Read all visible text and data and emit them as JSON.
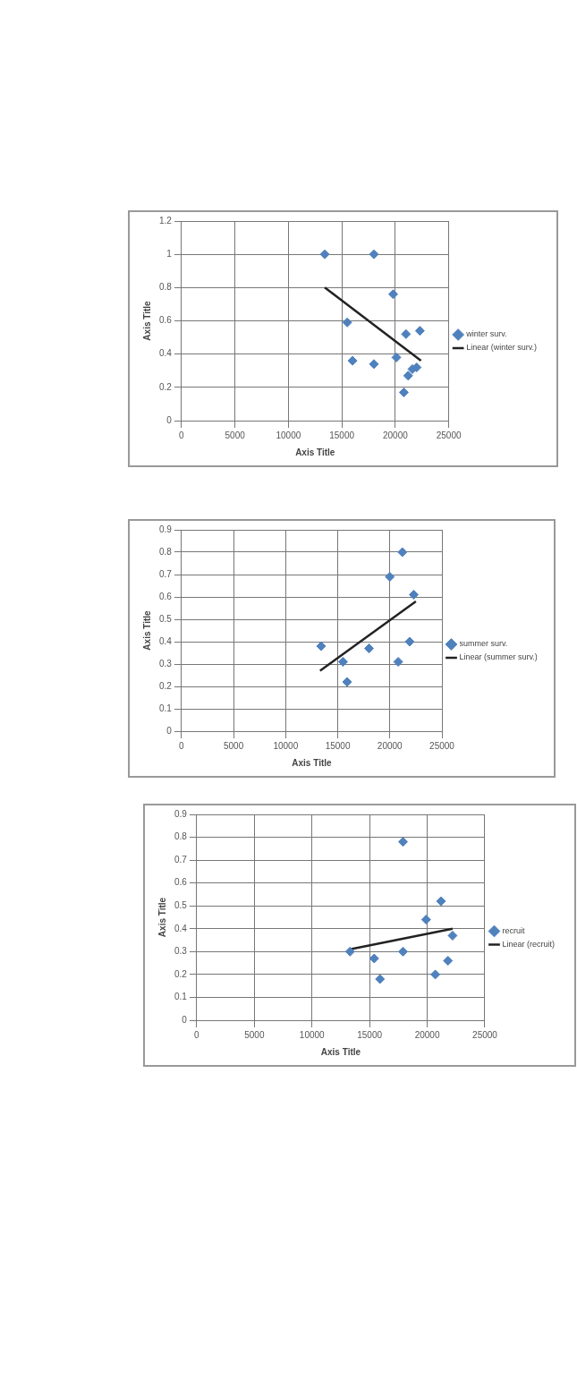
{
  "chart_data": [
    {
      "type": "scatter",
      "xlabel": "Axis Title",
      "ylabel": "Axis Title",
      "xlim": [
        0,
        25000
      ],
      "xticks": [
        0,
        5000,
        10000,
        15000,
        20000,
        25000
      ],
      "ylim": [
        0,
        1.2
      ],
      "yticks": [
        0,
        0.2,
        0.4,
        0.6,
        0.8,
        1,
        1.2
      ],
      "grid": true,
      "legend": "right",
      "marker": "diamond",
      "series": [
        {
          "name": "winter surv.",
          "color": "#4f81bd",
          "x": [
            13400,
            18000,
            19800,
            15500,
            21000,
            22300,
            16000,
            18000,
            20100,
            21200,
            21600,
            22000,
            20800
          ],
          "values": [
            1,
            1,
            0.76,
            0.59,
            0.52,
            0.54,
            0.36,
            0.34,
            0.38,
            0.27,
            0.31,
            0.32,
            0.17
          ]
        },
        {
          "name": "Linear (winter surv.)",
          "type": "line",
          "marker": "none",
          "color": "#222222",
          "x": [
            13400,
            22400
          ],
          "values": [
            0.8,
            0.36
          ]
        }
      ]
    },
    {
      "type": "scatter",
      "xlabel": "Axis Title",
      "ylabel": "Axis Title",
      "xlim": [
        0,
        25000
      ],
      "xticks": [
        0,
        5000,
        10000,
        15000,
        20000,
        25000
      ],
      "ylim": [
        0,
        0.9
      ],
      "yticks": [
        0,
        0.1,
        0.2,
        0.3,
        0.4,
        0.5,
        0.6,
        0.7,
        0.8,
        0.9
      ],
      "grid": true,
      "legend": "right",
      "marker": "diamond",
      "series": [
        {
          "name": "summer surv.",
          "color": "#4f81bd",
          "x": [
            13400,
            15500,
            15900,
            18000,
            20000,
            21200,
            22300,
            21900,
            20800
          ],
          "values": [
            0.38,
            0.31,
            0.22,
            0.37,
            0.69,
            0.8,
            0.61,
            0.4,
            0.31
          ]
        },
        {
          "name": "Linear (summer surv.)",
          "type": "line",
          "marker": "none",
          "color": "#222222",
          "x": [
            13300,
            22500
          ],
          "values": [
            0.27,
            0.58
          ]
        }
      ]
    },
    {
      "type": "scatter",
      "xlabel": "Axis Title",
      "ylabel": "Axis Title",
      "xlim": [
        0,
        25000
      ],
      "xticks": [
        0,
        5000,
        10000,
        15000,
        20000,
        25000
      ],
      "ylim": [
        0,
        0.9
      ],
      "yticks": [
        0,
        0.1,
        0.2,
        0.3,
        0.4,
        0.5,
        0.6,
        0.7,
        0.8,
        0.9
      ],
      "grid": true,
      "legend": "right",
      "marker": "diamond",
      "series": [
        {
          "name": "recruit",
          "color": "#4f81bd",
          "x": [
            13300,
            15400,
            15900,
            17900,
            17900,
            19900,
            21200,
            20700,
            21800,
            22200
          ],
          "values": [
            0.3,
            0.27,
            0.18,
            0.78,
            0.3,
            0.44,
            0.52,
            0.2,
            0.26,
            0.37
          ]
        },
        {
          "name": "Linear (recruit)",
          "type": "line",
          "marker": "none",
          "color": "#222222",
          "x": [
            13300,
            22200
          ],
          "values": [
            0.31,
            0.4
          ]
        }
      ]
    }
  ]
}
